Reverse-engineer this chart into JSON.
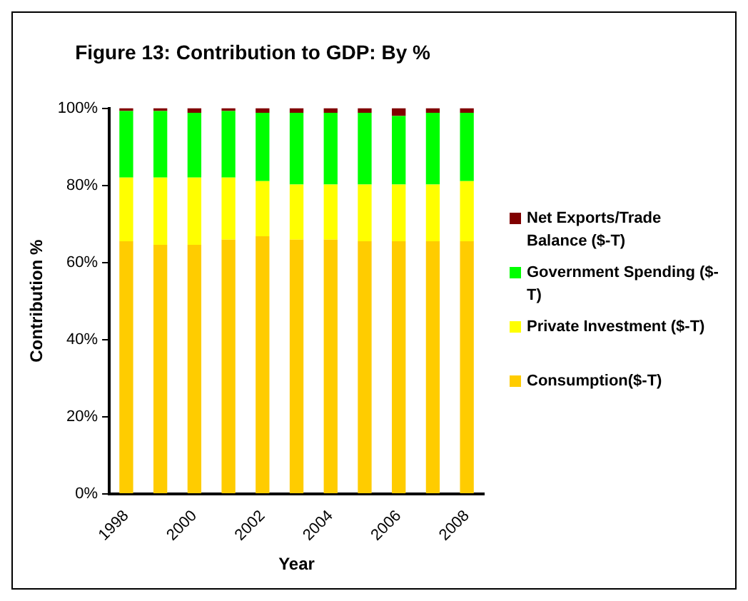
{
  "chart_data": {
    "type": "bar",
    "title": "Figure 13: Contribution to GDP: By %",
    "xlabel": "Year",
    "ylabel": "Contribution %",
    "stacked": true,
    "categories": [
      "1998",
      null,
      "2000",
      null,
      "2002",
      null,
      "2004",
      null,
      "2006",
      null,
      "2008"
    ],
    "series": [
      {
        "name": "Consumption($-T)",
        "color": "#ffcc00",
        "values": [
          65.5,
          64.6,
          64.6,
          65.9,
          66.8,
          65.9,
          65.9,
          65.5,
          65.5,
          65.5,
          65.5
        ]
      },
      {
        "name": "Private Investment ($-T)",
        "color": "#ffff00",
        "values": [
          16.5,
          17.4,
          17.4,
          16.1,
          14.3,
          14.3,
          14.3,
          14.7,
          14.7,
          14.7,
          15.6
        ]
      },
      {
        "name": "Government Spending ($-T)",
        "color": "#00ff00",
        "values": [
          17.3,
          17.3,
          16.8,
          17.3,
          17.7,
          18.6,
          18.6,
          18.6,
          17.8,
          18.6,
          17.7
        ]
      },
      {
        "name": "Net Exports/Trade Balance ($-T)",
        "color": "#800000",
        "values": [
          0.7,
          0.7,
          1.2,
          0.7,
          1.2,
          1.2,
          1.2,
          1.2,
          2.0,
          1.2,
          1.2
        ]
      }
    ],
    "ylim": [
      0,
      100
    ],
    "yticks": [
      {
        "value": 0,
        "label": "0%"
      },
      {
        "value": 20,
        "label": "20%"
      },
      {
        "value": 40,
        "label": "40%"
      },
      {
        "value": 60,
        "label": "60%"
      },
      {
        "value": 80,
        "label": "80%"
      },
      {
        "value": 100,
        "label": "100%"
      }
    ],
    "grid": false,
    "legend": "right"
  }
}
